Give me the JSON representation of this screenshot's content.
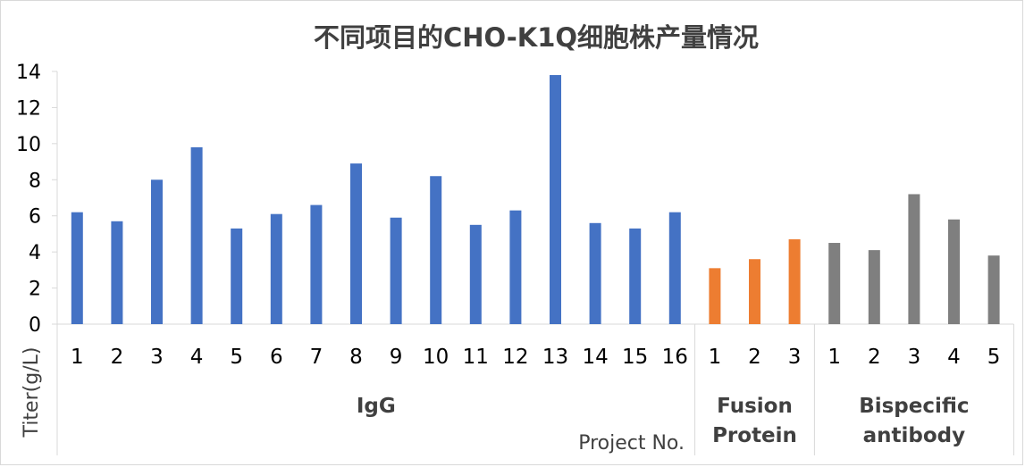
{
  "chart_data": {
    "type": "bar",
    "title": "不同项目的CHO-K1Q细胞株产量情况",
    "ylabel": "Titer(g/L)",
    "xlabel": "Project No.",
    "ylim": [
      0,
      14
    ],
    "yticks": [
      "0",
      "2",
      "4",
      "6",
      "8",
      "10",
      "12",
      "14"
    ],
    "grid": false,
    "legend": "none",
    "groups": [
      {
        "name": "IgG",
        "color": "#4472c4",
        "categories": [
          "1",
          "2",
          "3",
          "4",
          "5",
          "6",
          "7",
          "8",
          "9",
          "10",
          "11",
          "12",
          "13",
          "14",
          "15",
          "16"
        ],
        "values": [
          6.2,
          5.7,
          8.0,
          9.8,
          5.3,
          6.1,
          6.6,
          8.9,
          5.9,
          8.2,
          5.5,
          6.3,
          13.8,
          5.6,
          5.3,
          6.2
        ]
      },
      {
        "name": "Fusion Protein",
        "color": "#ed7d31",
        "categories": [
          "1",
          "2",
          "3"
        ],
        "values": [
          3.1,
          3.6,
          4.7
        ]
      },
      {
        "name": "Bispecific antibody",
        "color": "#7f7f7f",
        "categories": [
          "1",
          "2",
          "3",
          "4",
          "5"
        ],
        "values": [
          4.5,
          4.1,
          7.2,
          5.8,
          3.8
        ]
      }
    ]
  }
}
